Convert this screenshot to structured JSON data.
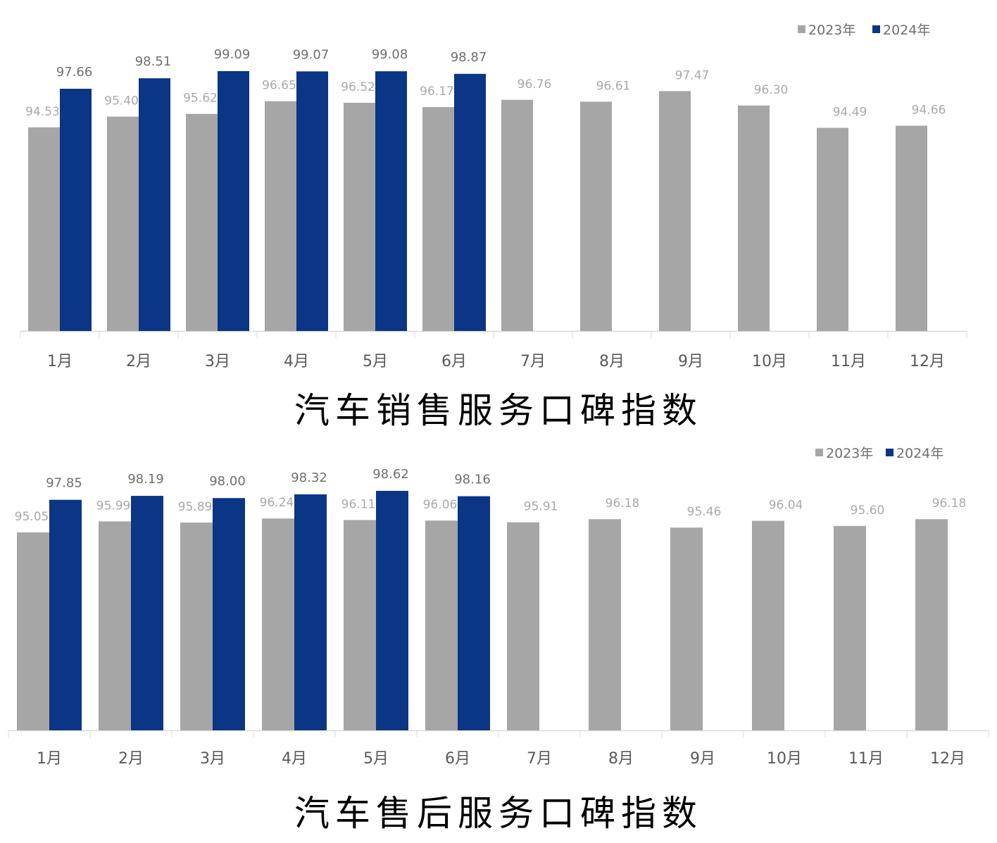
{
  "colors": {
    "series_2023": "#a6a6a6",
    "series_2024": "#0b3585",
    "axis": "#d9d9d9"
  },
  "chart_data": [
    {
      "type": "bar",
      "title": "汽车销售服务口碑指数",
      "categories": [
        "1月",
        "2月",
        "3月",
        "4月",
        "5月",
        "6月",
        "7月",
        "8月",
        "9月",
        "10月",
        "11月",
        "12月"
      ],
      "series": [
        {
          "name": "2023年",
          "values": [
            94.53,
            95.4,
            95.62,
            96.65,
            96.52,
            96.17,
            96.76,
            96.61,
            97.47,
            96.3,
            94.49,
            94.66
          ]
        },
        {
          "name": "2024年",
          "values": [
            97.66,
            98.51,
            99.09,
            99.07,
            99.08,
            98.87,
            null,
            null,
            null,
            null,
            null,
            null
          ]
        }
      ],
      "value_labels": {
        "2023": [
          "94.53",
          "95.40",
          "95.62",
          "96.65",
          "96.52",
          "96.17",
          "96.76",
          "96.61",
          "97.47",
          "96.30",
          "94.49",
          "94.66"
        ],
        "2024": [
          "97.66",
          "98.51",
          "99.09",
          "99.07",
          "99.08",
          "98.87"
        ]
      },
      "ylim": [
        78,
        100
      ],
      "grid": false,
      "legend": "top-right"
    },
    {
      "type": "bar",
      "title": "汽车售后服务口碑指数",
      "categories": [
        "1月",
        "2月",
        "3月",
        "4月",
        "5月",
        "6月",
        "7月",
        "8月",
        "9月",
        "10月",
        "11月",
        "12月"
      ],
      "series": [
        {
          "name": "2023年",
          "values": [
            95.05,
            95.99,
            95.89,
            96.24,
            96.11,
            96.06,
            95.91,
            96.18,
            95.46,
            96.04,
            95.6,
            96.18
          ]
        },
        {
          "name": "2024年",
          "values": [
            97.85,
            98.19,
            98.0,
            98.32,
            98.62,
            98.16,
            null,
            null,
            null,
            null,
            null,
            null
          ]
        }
      ],
      "value_labels": {
        "2023": [
          "95.05",
          "95.99",
          "95.89",
          "96.24",
          "96.11",
          "96.06",
          "95.91",
          "96.18",
          "95.46",
          "96.04",
          "95.60",
          "96.18"
        ],
        "2024": [
          "97.85",
          "98.19",
          "98.00",
          "98.32",
          "98.62",
          "98.16"
        ]
      },
      "ylim": [
        78,
        100
      ],
      "grid": false,
      "legend": "top-right"
    }
  ]
}
